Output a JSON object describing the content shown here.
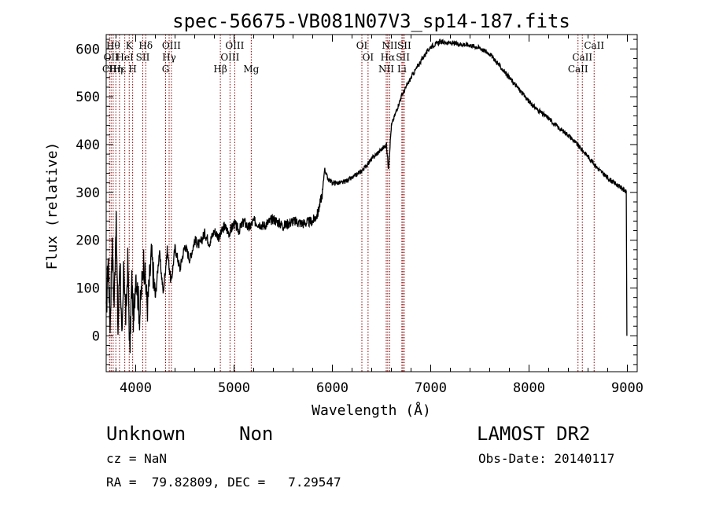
{
  "chart_data": {
    "type": "line",
    "title": "spec-56675-VB081N07V3_sp14-187.fits",
    "xlabel": "Wavelength (Å)",
    "ylabel": "Flux (relative)",
    "xlim": [
      3700,
      9100
    ],
    "ylim": [
      -75,
      630
    ],
    "xticks": [
      4000,
      5000,
      6000,
      7000,
      8000,
      9000
    ],
    "yticks": [
      0,
      100,
      200,
      300,
      400,
      500,
      600
    ],
    "grid": false,
    "line_color": "#000000",
    "marker_color": "#8b0000",
    "series": [
      {
        "points": [
          [
            3700,
            40
          ],
          [
            3720,
            170
          ],
          [
            3740,
            20
          ],
          [
            3760,
            200
          ],
          [
            3780,
            60
          ],
          [
            3800,
            250
          ],
          [
            3820,
            10
          ],
          [
            3840,
            180
          ],
          [
            3860,
            -30
          ],
          [
            3880,
            150
          ],
          [
            3900,
            30
          ],
          [
            3920,
            160
          ],
          [
            3940,
            -40
          ],
          [
            3960,
            120
          ],
          [
            3980,
            20
          ],
          [
            4000,
            140
          ],
          [
            4040,
            40
          ],
          [
            4080,
            160
          ],
          [
            4120,
            60
          ],
          [
            4160,
            170
          ],
          [
            4200,
            80
          ],
          [
            4240,
            175
          ],
          [
            4280,
            90
          ],
          [
            4320,
            180
          ],
          [
            4360,
            110
          ],
          [
            4400,
            185
          ],
          [
            4450,
            140
          ],
          [
            4500,
            190
          ],
          [
            4550,
            160
          ],
          [
            4600,
            200
          ],
          [
            4650,
            190
          ],
          [
            4700,
            215
          ],
          [
            4750,
            195
          ],
          [
            4800,
            220
          ],
          [
            4850,
            205
          ],
          [
            4900,
            230
          ],
          [
            4950,
            215
          ],
          [
            5000,
            235
          ],
          [
            5050,
            220
          ],
          [
            5100,
            240
          ],
          [
            5150,
            225
          ],
          [
            5200,
            240
          ],
          [
            5300,
            230
          ],
          [
            5400,
            245
          ],
          [
            5500,
            230
          ],
          [
            5600,
            240
          ],
          [
            5700,
            235
          ],
          [
            5800,
            240
          ],
          [
            5850,
            255
          ],
          [
            5900,
            300
          ],
          [
            5920,
            350
          ],
          [
            5950,
            330
          ],
          [
            6000,
            320
          ],
          [
            6100,
            320
          ],
          [
            6200,
            330
          ],
          [
            6300,
            345
          ],
          [
            6400,
            370
          ],
          [
            6500,
            390
          ],
          [
            6550,
            400
          ],
          [
            6570,
            350
          ],
          [
            6600,
            440
          ],
          [
            6650,
            470
          ],
          [
            6700,
            500
          ],
          [
            6800,
            540
          ],
          [
            6900,
            575
          ],
          [
            7000,
            605
          ],
          [
            7100,
            615
          ],
          [
            7200,
            612
          ],
          [
            7300,
            610
          ],
          [
            7400,
            608
          ],
          [
            7500,
            602
          ],
          [
            7600,
            590
          ],
          [
            7700,
            565
          ],
          [
            7800,
            540
          ],
          [
            7900,
            515
          ],
          [
            8000,
            490
          ],
          [
            8100,
            470
          ],
          [
            8200,
            455
          ],
          [
            8300,
            435
          ],
          [
            8400,
            420
          ],
          [
            8500,
            398
          ],
          [
            8600,
            375
          ],
          [
            8700,
            350
          ],
          [
            8800,
            330
          ],
          [
            8900,
            315
          ],
          [
            8950,
            308
          ],
          [
            8990,
            300
          ],
          [
            8995,
            0
          ]
        ]
      }
    ],
    "lines": [
      {
        "wl": 3734,
        "labels": [
          "CII"
        ],
        "level": 2
      },
      {
        "wl": 3750,
        "labels": [
          "OII"
        ],
        "level": 1
      },
      {
        "wl": 3771,
        "labels": [
          "Hθ"
        ],
        "level": 0
      },
      {
        "wl": 3798,
        "labels": [
          "Hη"
        ],
        "level": 2
      },
      {
        "wl": 3835,
        "labels": [
          "Hε"
        ],
        "level": 2
      },
      {
        "wl": 3889,
        "labels": [
          "HeI"
        ],
        "level": 1
      },
      {
        "wl": 3934,
        "labels": [
          "K"
        ],
        "level": 0
      },
      {
        "wl": 3969,
        "labels": [
          "H"
        ],
        "level": 2
      },
      {
        "wl": 4072,
        "labels": [
          "SII"
        ],
        "level": 1
      },
      {
        "wl": 4102,
        "labels": [
          "Hδ"
        ],
        "level": 0
      },
      {
        "wl": 4304,
        "labels": [
          "G"
        ],
        "level": 2
      },
      {
        "wl": 4340,
        "labels": [
          "Hγ"
        ],
        "level": 1
      },
      {
        "wl": 4363,
        "labels": [
          "OIII"
        ],
        "level": 0
      },
      {
        "wl": 4861,
        "labels": [
          "Hβ"
        ],
        "level": 2
      },
      {
        "wl": 4959,
        "labels": [
          "OIII"
        ],
        "level": 1
      },
      {
        "wl": 5007,
        "labels": [
          "OIII"
        ],
        "level": 0
      },
      {
        "wl": 5175,
        "labels": [
          "Mg"
        ],
        "level": 2
      },
      {
        "wl": 6300,
        "labels": [
          "OI"
        ],
        "level": 0
      },
      {
        "wl": 6363,
        "labels": [
          "OI"
        ],
        "level": 1
      },
      {
        "wl": 6548,
        "labels": [
          "NII"
        ],
        "level": 2
      },
      {
        "wl": 6563,
        "labels": [
          "Hα"
        ],
        "level": 1
      },
      {
        "wl": 6583,
        "labels": [
          "NII"
        ],
        "level": 0
      },
      {
        "wl": 6707,
        "labels": [
          "Li"
        ],
        "level": 2
      },
      {
        "wl": 6717,
        "labels": [
          "SII"
        ],
        "level": 1
      },
      {
        "wl": 6731,
        "labels": [
          "SII"
        ],
        "level": 0
      },
      {
        "wl": 8498,
        "labels": [
          "CaII"
        ],
        "level": 2
      },
      {
        "wl": 8542,
        "labels": [
          "CaII"
        ],
        "level": 1
      },
      {
        "wl": 8662,
        "labels": [
          "CaII"
        ],
        "level": 0
      }
    ]
  },
  "info": {
    "class_label": "Unknown",
    "subclass_label": "Non",
    "survey": "LAMOST DR2",
    "cz": "cz = NaN",
    "obs_date": "Obs-Date: 20140117",
    "coords": "RA =  79.82809, DEC =   7.29547"
  }
}
